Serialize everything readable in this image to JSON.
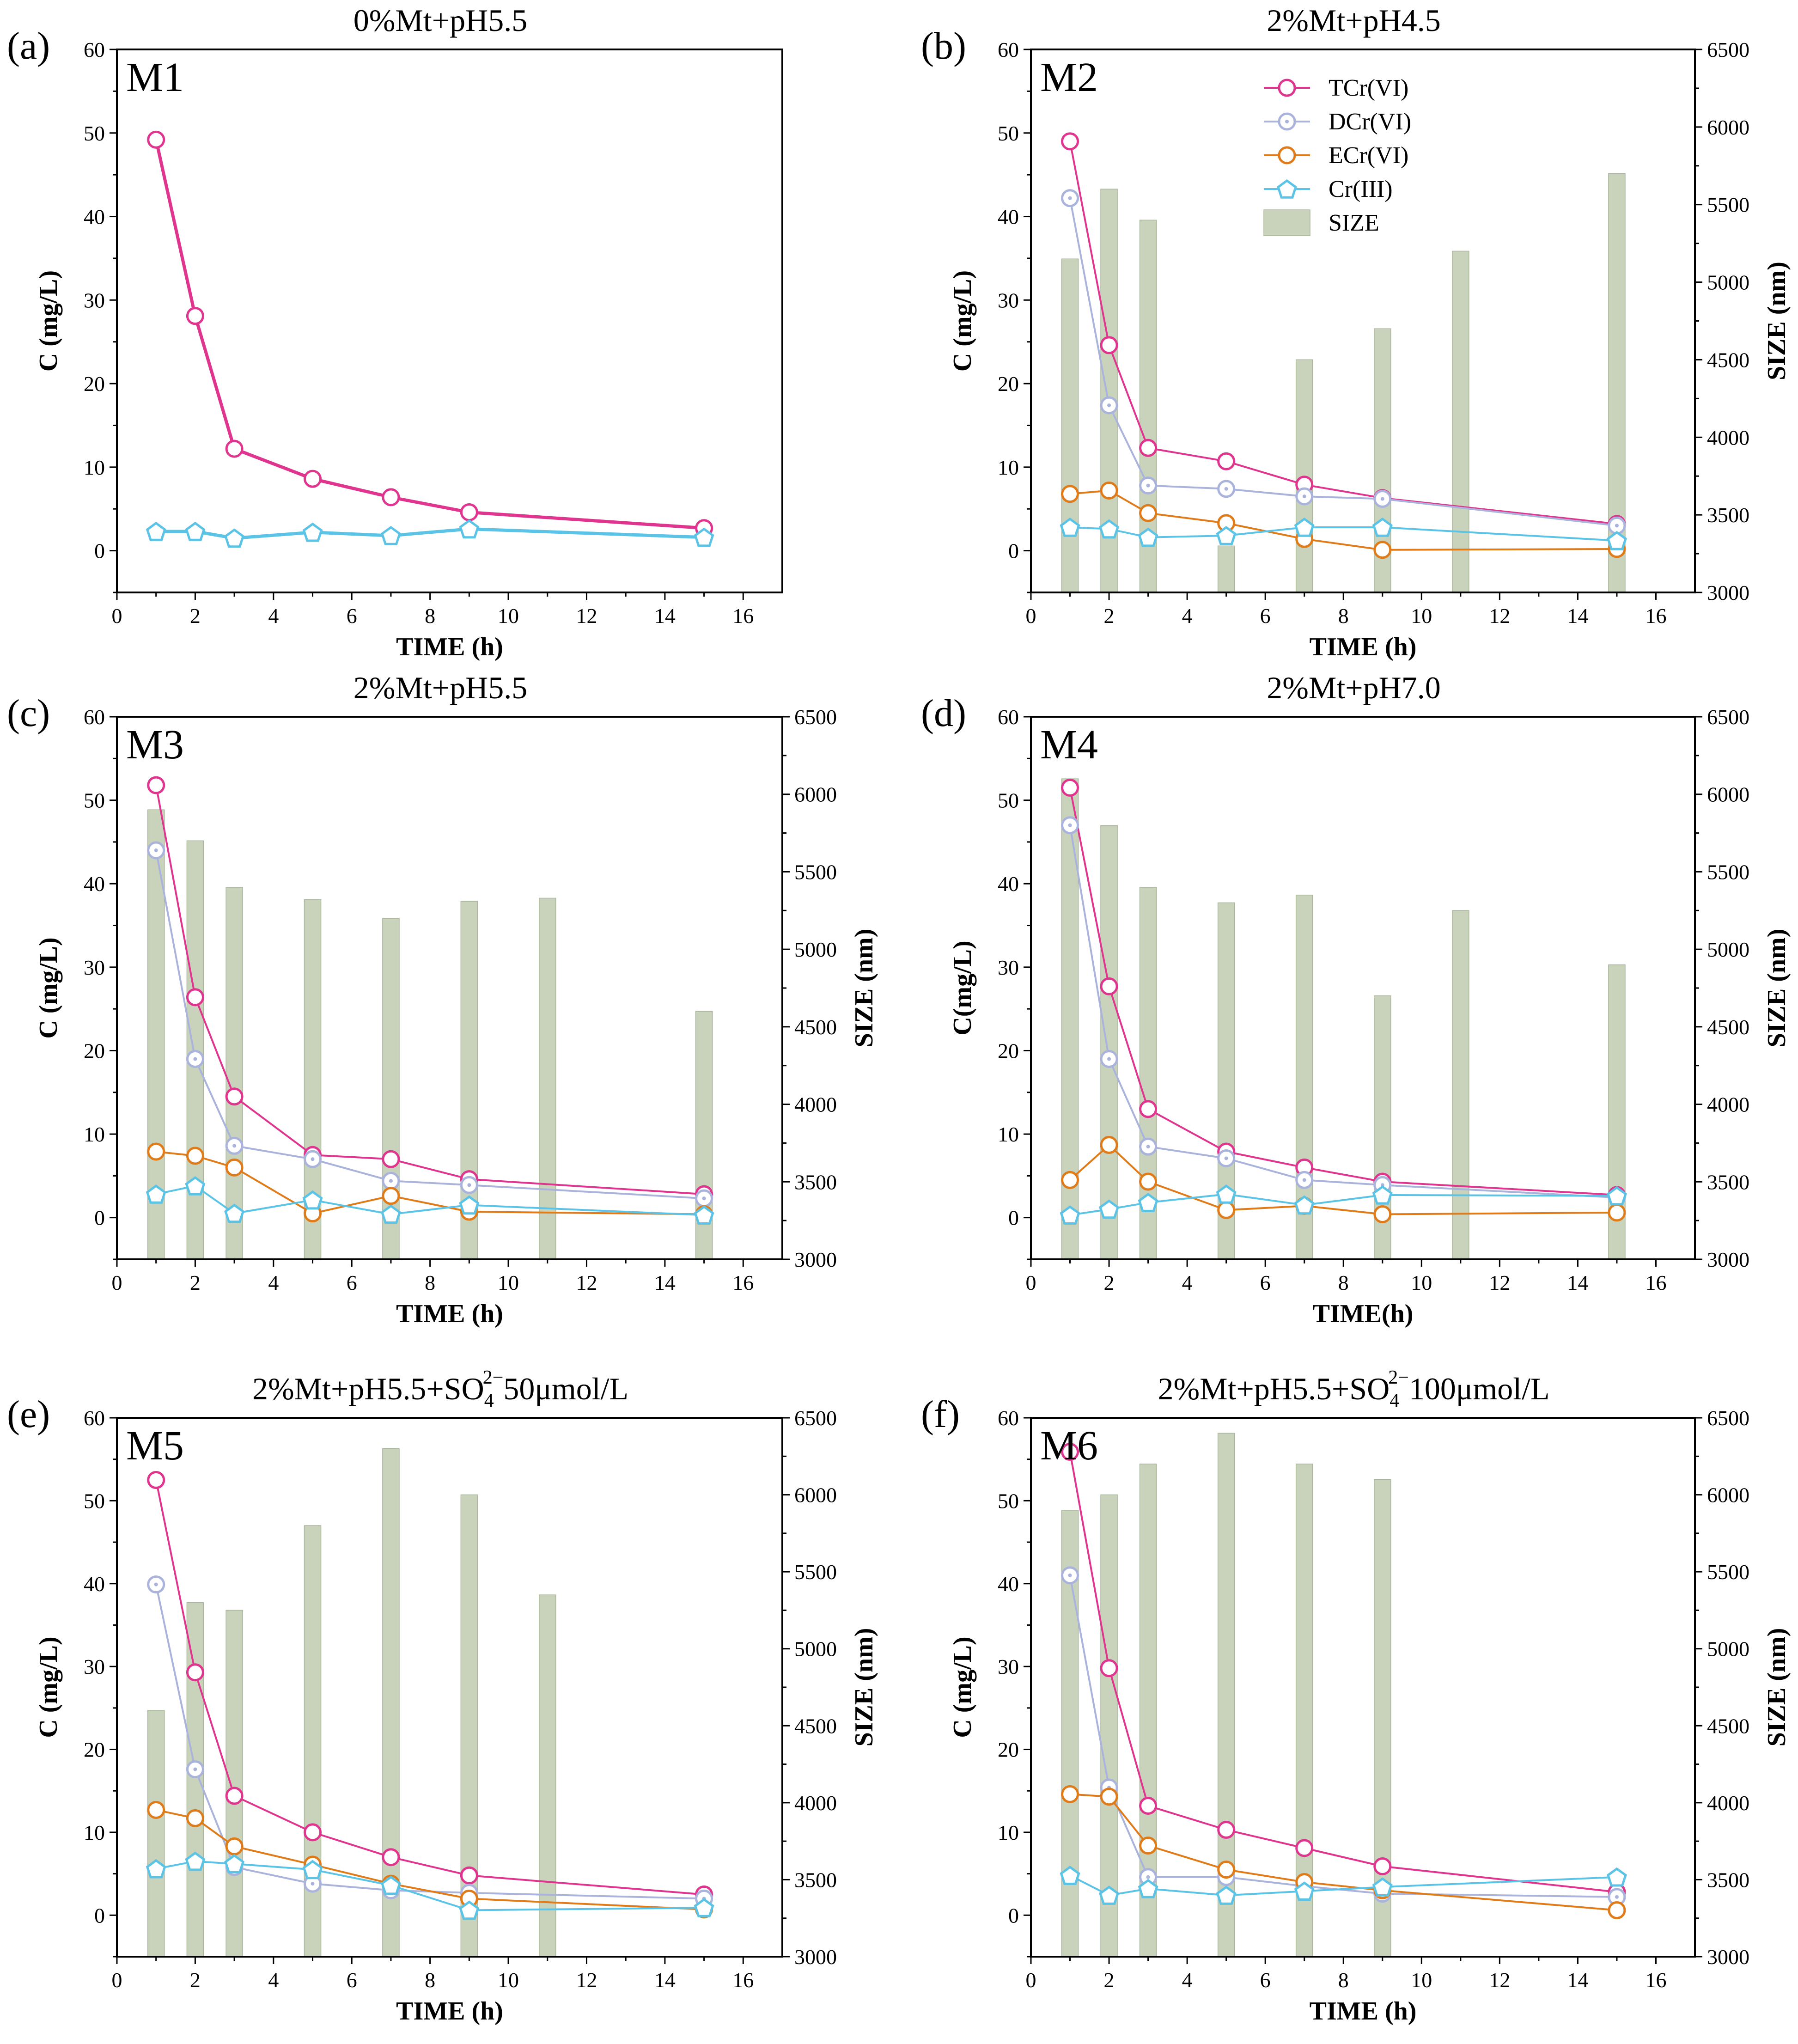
{
  "colors": {
    "tcr": "#e0358f",
    "dcr": "#aab3dc",
    "ecr": "#e07b1a",
    "cr3": "#5bc3e6",
    "size": "#c9d3bc",
    "size_edge": "#a8b59a"
  },
  "legend": {
    "tcr": "TCr(VI)",
    "dcr": "DCr(VI)",
    "ecr": "ECr(VI)",
    "cr3": "Cr(III)",
    "size": "SIZE"
  },
  "chart_data": [
    {
      "id": "a",
      "letter": "(a)",
      "model": "M1",
      "title": "0%Mt+pH5.5",
      "type": "line",
      "xlabel": "TIME (h)",
      "ylabel": "C (mg/L)",
      "y2label": "",
      "xlim": [
        0,
        17
      ],
      "xticks": [
        0,
        2,
        4,
        6,
        8,
        10,
        12,
        14,
        16
      ],
      "ylim": [
        -5,
        60
      ],
      "yticks": [
        0,
        10,
        20,
        30,
        40,
        50,
        60
      ],
      "x": [
        1,
        2,
        3,
        5,
        7,
        9,
        15
      ],
      "series": [
        {
          "key": "tcr",
          "name": "TCr(VI)",
          "values": [
            49.2,
            28.1,
            12.2,
            8.6,
            6.4,
            4.6,
            2.7
          ]
        },
        {
          "key": "cr3",
          "name": "Cr(III)",
          "values": [
            2.3,
            2.3,
            1.5,
            2.2,
            1.8,
            2.6,
            1.6
          ]
        }
      ]
    },
    {
      "id": "b",
      "letter": "(b)",
      "model": "M2",
      "title": "2%Mt+pH4.5",
      "type": "line+bar",
      "xlabel": "TIME (h)",
      "ylabel": "C (mg/L)",
      "y2label": "SIZE (nm)",
      "xlim": [
        0,
        17
      ],
      "xticks": [
        0,
        2,
        4,
        6,
        8,
        10,
        12,
        14,
        16
      ],
      "ylim": [
        -5,
        60
      ],
      "yticks": [
        0,
        10,
        20,
        30,
        40,
        50,
        60
      ],
      "y2lim": [
        3000,
        6500
      ],
      "y2ticks": [
        3000,
        3500,
        4000,
        4500,
        5000,
        5500,
        6000,
        6500
      ],
      "x": [
        1,
        2,
        3,
        5,
        7,
        9,
        15
      ],
      "series": [
        {
          "key": "tcr",
          "name": "TCr(VI)",
          "values": [
            49.0,
            24.6,
            12.3,
            10.7,
            7.9,
            6.3,
            3.2
          ]
        },
        {
          "key": "dcr",
          "name": "DCr(VI)",
          "values": [
            42.2,
            17.4,
            7.8,
            7.4,
            6.5,
            6.2,
            3.0
          ]
        },
        {
          "key": "ecr",
          "name": "ECr(VI)",
          "values": [
            6.8,
            7.2,
            4.5,
            3.3,
            1.4,
            0.1,
            0.2
          ]
        },
        {
          "key": "cr3",
          "name": "Cr(III)",
          "values": [
            2.8,
            2.6,
            1.6,
            1.8,
            2.8,
            2.8,
            1.2
          ]
        }
      ],
      "size_bars": {
        "x": [
          1,
          2,
          3,
          5,
          7,
          9,
          11,
          15
        ],
        "values": [
          5150,
          5600,
          5400,
          3300,
          4500,
          4700,
          5200,
          5700
        ]
      }
    },
    {
      "id": "c",
      "letter": "(c)",
      "model": "M3",
      "title": "2%Mt+pH5.5",
      "type": "line+bar",
      "xlabel": "TIME (h)",
      "ylabel": "C (mg/L)",
      "y2label": "SIZE (nm)",
      "xlim": [
        0,
        17
      ],
      "xticks": [
        0,
        2,
        4,
        6,
        8,
        10,
        12,
        14,
        16
      ],
      "ylim": [
        -5,
        60
      ],
      "yticks": [
        0,
        10,
        20,
        30,
        40,
        50,
        60
      ],
      "y2lim": [
        3000,
        6500
      ],
      "y2ticks": [
        3000,
        3500,
        4000,
        4500,
        5000,
        5500,
        6000,
        6500
      ],
      "x": [
        1,
        2,
        3,
        5,
        7,
        9,
        15
      ],
      "series": [
        {
          "key": "tcr",
          "name": "TCr(VI)",
          "values": [
            51.8,
            26.4,
            14.5,
            7.5,
            7.0,
            4.6,
            2.8
          ]
        },
        {
          "key": "dcr",
          "name": "DCr(VI)",
          "values": [
            44.0,
            19.0,
            8.6,
            7.0,
            4.4,
            3.9,
            2.3
          ]
        },
        {
          "key": "ecr",
          "name": "ECr(VI)",
          "values": [
            7.9,
            7.4,
            6.0,
            0.5,
            2.6,
            0.7,
            0.4
          ]
        },
        {
          "key": "cr3",
          "name": "Cr(III)",
          "values": [
            2.8,
            3.8,
            0.5,
            2.1,
            0.4,
            1.5,
            0.3
          ]
        }
      ],
      "size_bars": {
        "x": [
          1,
          2,
          3,
          5,
          7,
          9,
          11,
          15
        ],
        "values": [
          5900,
          5700,
          5400,
          5320,
          5200,
          5310,
          5330,
          4600
        ]
      }
    },
    {
      "id": "d",
      "letter": "(d)",
      "model": "M4",
      "title": "2%Mt+pH7.0",
      "type": "line+bar",
      "xlabel": "TIME(h)",
      "ylabel": "C(mg/L)",
      "y2label": "SIZE (nm)",
      "xlim": [
        0,
        17
      ],
      "xticks": [
        0,
        2,
        4,
        6,
        8,
        10,
        12,
        14,
        16
      ],
      "ylim": [
        -5,
        60
      ],
      "yticks": [
        0,
        10,
        20,
        30,
        40,
        50,
        60
      ],
      "y2lim": [
        3000,
        6500
      ],
      "y2ticks": [
        3000,
        3500,
        4000,
        4500,
        5000,
        5500,
        6000,
        6500
      ],
      "x": [
        1,
        2,
        3,
        5,
        7,
        9,
        15
      ],
      "series": [
        {
          "key": "tcr",
          "name": "TCr(VI)",
          "values": [
            51.5,
            27.7,
            13.0,
            7.9,
            6.0,
            4.3,
            2.7
          ]
        },
        {
          "key": "dcr",
          "name": "DCr(VI)",
          "values": [
            47.0,
            19.0,
            8.5,
            7.1,
            4.5,
            3.9,
            2.4
          ]
        },
        {
          "key": "ecr",
          "name": "ECr(VI)",
          "values": [
            4.5,
            8.7,
            4.3,
            0.9,
            1.4,
            0.4,
            0.6
          ]
        },
        {
          "key": "cr3",
          "name": "Cr(III)",
          "values": [
            0.3,
            1.0,
            1.8,
            2.8,
            1.5,
            2.7,
            2.6
          ]
        }
      ],
      "size_bars": {
        "x": [
          1,
          2,
          3,
          5,
          7,
          9,
          11,
          15
        ],
        "values": [
          6100,
          5800,
          5400,
          5300,
          5350,
          4700,
          5250,
          4900
        ]
      }
    },
    {
      "id": "e",
      "letter": "(e)",
      "model": "M5",
      "title": "2%Mt+pH5.5+SO42−50μmol/L",
      "title_pre": "2%Mt+pH5.5+SO",
      "title_sub": "4",
      "title_sup": "2−",
      "title_post": "50μmol/L",
      "type": "line+bar",
      "xlabel": "TIME (h)",
      "ylabel": "C (mg/L)",
      "y2label": "SIZE (nm)",
      "xlim": [
        0,
        17
      ],
      "xticks": [
        0,
        2,
        4,
        6,
        8,
        10,
        12,
        14,
        16
      ],
      "ylim": [
        -5,
        60
      ],
      "yticks": [
        0,
        10,
        20,
        30,
        40,
        50,
        60
      ],
      "y2lim": [
        3000,
        6500
      ],
      "y2ticks": [
        3000,
        3500,
        4000,
        4500,
        5000,
        5500,
        6000,
        6500
      ],
      "x": [
        1,
        2,
        3,
        5,
        7,
        9,
        15
      ],
      "series": [
        {
          "key": "tcr",
          "name": "TCr(VI)",
          "values": [
            52.5,
            29.3,
            14.4,
            10.0,
            7.0,
            4.8,
            2.5
          ]
        },
        {
          "key": "dcr",
          "name": "DCr(VI)",
          "values": [
            39.9,
            17.6,
            5.8,
            3.8,
            3.0,
            2.7,
            2.0
          ]
        },
        {
          "key": "ecr",
          "name": "ECr(VI)",
          "values": [
            12.7,
            11.7,
            8.3,
            6.1,
            3.8,
            2.0,
            0.7
          ]
        },
        {
          "key": "cr3",
          "name": "Cr(III)",
          "values": [
            5.6,
            6.5,
            6.2,
            5.5,
            3.6,
            0.6,
            0.9
          ]
        }
      ],
      "size_bars": {
        "x": [
          1,
          2,
          3,
          5,
          7,
          9,
          11,
          15
        ],
        "values": [
          4600,
          5300,
          5250,
          5800,
          6300,
          6000,
          5350,
          3000
        ]
      }
    },
    {
      "id": "f",
      "letter": "(f)",
      "model": "M6",
      "title": "2%Mt+pH5.5+SO42−100μmol/L",
      "title_pre": "2%Mt+pH5.5+SO",
      "title_sub": "4",
      "title_sup": "2−",
      "title_post": "100μmol/L",
      "type": "line+bar",
      "xlabel": "TIME (h)",
      "ylabel": "C (mg/L)",
      "y2label": "SIZE (nm)",
      "xlim": [
        0,
        17
      ],
      "xticks": [
        0,
        2,
        4,
        6,
        8,
        10,
        12,
        14,
        16
      ],
      "ylim": [
        -5,
        60
      ],
      "yticks": [
        0,
        10,
        20,
        30,
        40,
        50,
        60
      ],
      "y2lim": [
        3000,
        6500
      ],
      "y2ticks": [
        3000,
        3500,
        4000,
        4500,
        5000,
        5500,
        6000,
        6500
      ],
      "x": [
        1,
        2,
        3,
        5,
        7,
        9,
        15
      ],
      "series": [
        {
          "key": "tcr",
          "name": "TCr(VI)",
          "values": [
            55.9,
            29.8,
            13.2,
            10.3,
            8.1,
            5.9,
            2.8
          ]
        },
        {
          "key": "dcr",
          "name": "DCr(VI)",
          "values": [
            41.0,
            15.4,
            4.6,
            4.6,
            3.5,
            2.6,
            2.2
          ]
        },
        {
          "key": "ecr",
          "name": "ECr(VI)",
          "values": [
            14.6,
            14.3,
            8.4,
            5.5,
            4.0,
            3.0,
            0.6
          ]
        },
        {
          "key": "cr3",
          "name": "Cr(III)",
          "values": [
            4.8,
            2.4,
            3.2,
            2.4,
            2.9,
            3.4,
            4.6
          ]
        }
      ],
      "size_bars": {
        "x": [
          1,
          2,
          3,
          5,
          7,
          9
        ],
        "values": [
          5900,
          6000,
          6200,
          6400,
          6200,
          6100
        ]
      }
    }
  ]
}
